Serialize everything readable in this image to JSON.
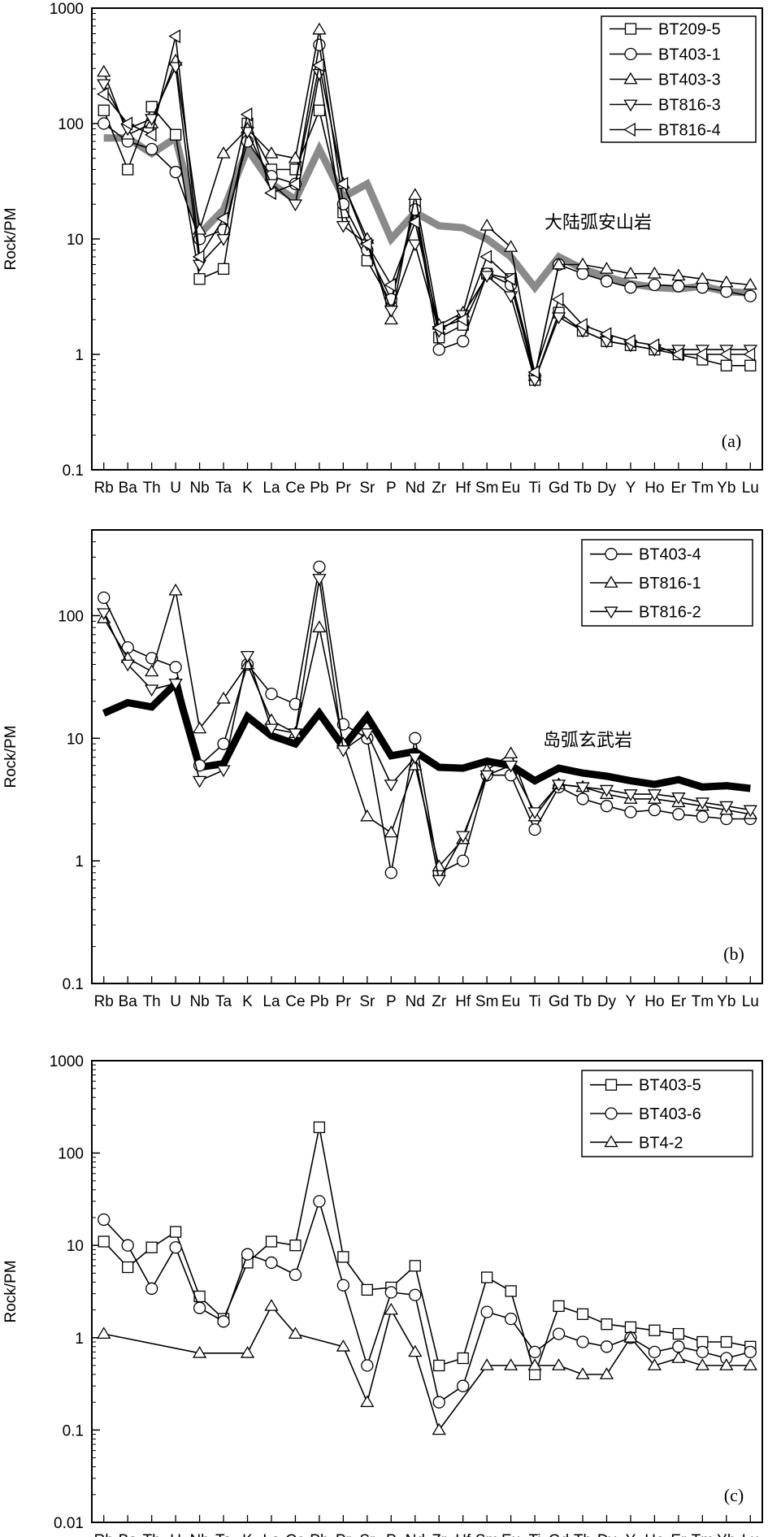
{
  "chart_data": [
    {
      "type": "line",
      "panel_label": "(a)",
      "ylabel": "Rock/PM",
      "yscale": "log",
      "ylim": [
        0.1,
        1000
      ],
      "yticks": [
        "0.1",
        "1",
        "10",
        "100",
        "1000"
      ],
      "categories": [
        "Rb",
        "Ba",
        "Th",
        "U",
        "Nb",
        "Ta",
        "K",
        "La",
        "Ce",
        "Pb",
        "Pr",
        "Sr",
        "P",
        "Nd",
        "Zr",
        "Hf",
        "Sm",
        "Eu",
        "Ti",
        "Gd",
        "Tb",
        "Dy",
        "Y",
        "Ho",
        "Er",
        "Tm",
        "Yb",
        "Lu"
      ],
      "legend_position": "top-right",
      "annotation": "大陆弧安山岩",
      "series": [
        {
          "name": "BT209-5",
          "marker": "square",
          "values": [
            130,
            40,
            140,
            80,
            4.5,
            5.5,
            100,
            40,
            40,
            130,
            17,
            6.5,
            2.8,
            20,
            1.4,
            1.8,
            5,
            4.5,
            0.6,
            2.3,
            1.6,
            1.3,
            1.2,
            1.1,
            1,
            0.9,
            0.8,
            0.8
          ]
        },
        {
          "name": "BT403-1",
          "marker": "circle",
          "values": [
            100,
            70,
            60,
            38,
            10,
            12,
            70,
            35,
            30,
            480,
            20,
            8,
            3,
            18,
            1.1,
            1.3,
            5,
            4,
            0.65,
            6,
            5,
            4.3,
            3.8,
            4,
            3.9,
            3.8,
            3.5,
            3.2
          ]
        },
        {
          "name": "BT403-3",
          "marker": "triangle-up",
          "values": [
            280,
            80,
            100,
            350,
            12,
            55,
            90,
            55,
            50,
            650,
            30,
            10,
            2,
            24,
            1.8,
            2.3,
            13,
            8.5,
            0.65,
            6,
            6,
            5.5,
            5,
            5,
            4.8,
            4.5,
            4.2,
            4
          ]
        },
        {
          "name": "BT816-3",
          "marker": "triangle-down",
          "values": [
            220,
            90,
            110,
            310,
            6,
            10,
            85,
            30,
            20,
            270,
            13,
            9,
            2.4,
            9,
            1.6,
            2.2,
            4.8,
            3.2,
            0.6,
            2.1,
            1.6,
            1.3,
            1.2,
            1.1,
            1.1,
            1.1,
            1.1,
            1.1
          ]
        },
        {
          "name": "BT816-4",
          "marker": "triangle-left",
          "values": [
            180,
            100,
            80,
            570,
            7,
            15,
            120,
            25,
            30,
            320,
            30,
            9,
            4,
            14,
            1.7,
            2,
            7,
            4.5,
            0.7,
            3,
            1.8,
            1.5,
            1.3,
            1.2,
            1,
            1,
            1,
            1
          ]
        }
      ],
      "reference": {
        "name": "大陆弧安山岩",
        "color": "#8a8a8a",
        "values": [
          75,
          75,
          55,
          75,
          11,
          18,
          60,
          30,
          22,
          60,
          23,
          30,
          10,
          17,
          13,
          12.5,
          10,
          7,
          3.8,
          7,
          5.5,
          4.7,
          4.1,
          3.8,
          3.7,
          3.9,
          3.5,
          3.4
        ]
      }
    },
    {
      "type": "line",
      "panel_label": "(b)",
      "ylabel": "Rock/PM",
      "yscale": "log",
      "ylim": [
        0.1,
        500
      ],
      "yticks": [
        "0.1",
        "1",
        "10",
        "100"
      ],
      "categories": [
        "Rb",
        "Ba",
        "Th",
        "U",
        "Nb",
        "Ta",
        "K",
        "La",
        "Ce",
        "Pb",
        "Pr",
        "Sr",
        "P",
        "Nd",
        "Zr",
        "Hf",
        "Sm",
        "Eu",
        "Ti",
        "Gd",
        "Tb",
        "Dy",
        "Y",
        "Ho",
        "Er",
        "Tm",
        "Yb",
        "Lu"
      ],
      "legend_position": "top-right",
      "annotation": "岛弧玄武岩",
      "series": [
        {
          "name": "BT403-4",
          "marker": "circle",
          "values": [
            140,
            55,
            45,
            38,
            6,
            9,
            40,
            23,
            19,
            250,
            13,
            10,
            0.8,
            10,
            0.8,
            1,
            5,
            5,
            1.8,
            4,
            3.2,
            2.8,
            2.5,
            2.6,
            2.4,
            2.3,
            2.2,
            2.2
          ]
        },
        {
          "name": "BT816-1",
          "marker": "triangle-up",
          "values": [
            95,
            45,
            35,
            160,
            12,
            21,
            40,
            14,
            11,
            80,
            9,
            2.3,
            1.7,
            6,
            0.9,
            1.5,
            5.5,
            7.5,
            2.3,
            4.2,
            4,
            3.5,
            3.2,
            3.2,
            3,
            2.8,
            2.6,
            2.4
          ]
        },
        {
          "name": "BT816-2",
          "marker": "triangle-down",
          "values": [
            105,
            40,
            25,
            28,
            4.5,
            5.5,
            47,
            12,
            11,
            200,
            8,
            11,
            4.2,
            7,
            0.7,
            1.6,
            5,
            6,
            2.5,
            4.2,
            4,
            3.8,
            3.5,
            3.5,
            3.3,
            3,
            2.8,
            2.6
          ]
        }
      ],
      "reference": {
        "name": "岛弧玄武岩",
        "color": "#000000",
        "values": [
          16,
          19.5,
          18,
          28,
          5.8,
          6.2,
          15,
          10.5,
          9,
          16,
          8.5,
          15,
          7.2,
          7.8,
          5.8,
          5.7,
          6.5,
          6,
          4.5,
          5.7,
          5.2,
          4.9,
          4.5,
          4.2,
          4.6,
          4,
          4.1,
          3.9
        ]
      }
    },
    {
      "type": "line",
      "panel_label": "(c)",
      "ylabel": "Rock/PM",
      "yscale": "log",
      "ylim": [
        0.01,
        1000
      ],
      "yticks": [
        "0.01",
        "0.1",
        "1",
        "10",
        "100",
        "1000"
      ],
      "categories": [
        "Rb",
        "Ba",
        "Th",
        "U",
        "Nb",
        "Ta",
        "K",
        "La",
        "Ce",
        "Pb",
        "Pr",
        "Sr",
        "P",
        "Nd",
        "Zr",
        "Hf",
        "Sm",
        "Eu",
        "Ti",
        "Gd",
        "Tb",
        "Dy",
        "Y",
        "Ho",
        "Er",
        "Tm",
        "Yb",
        "Lu"
      ],
      "legend_position": "top-right",
      "series": [
        {
          "name": "BT403-5",
          "marker": "square",
          "values": [
            11,
            5.8,
            9.5,
            14,
            2.8,
            1.6,
            6.5,
            11,
            10,
            190,
            7.5,
            3.3,
            3.5,
            6,
            0.5,
            0.6,
            4.5,
            3.2,
            0.4,
            2.2,
            1.8,
            1.4,
            1.3,
            1.2,
            1.1,
            0.9,
            0.9,
            0.8
          ]
        },
        {
          "name": "BT403-6",
          "marker": "circle",
          "values": [
            19,
            10,
            3.4,
            9.5,
            2.1,
            1.5,
            8,
            6.5,
            4.8,
            30,
            3.7,
            0.5,
            3.1,
            2.9,
            0.2,
            0.3,
            1.9,
            1.6,
            0.7,
            1.1,
            0.9,
            0.8,
            1,
            0.7,
            0.8,
            0.7,
            0.6,
            0.7
          ]
        },
        {
          "name": "BT4-2",
          "marker": "triangle-up",
          "values": [
            1.1,
            null,
            null,
            null,
            0.68,
            null,
            0.68,
            2.2,
            1.1,
            null,
            0.8,
            0.2,
            2,
            0.7,
            0.1,
            null,
            0.5,
            0.5,
            0.5,
            0.5,
            0.4,
            0.4,
            1,
            0.5,
            0.6,
            0.5,
            0.5,
            0.5
          ]
        }
      ]
    }
  ]
}
